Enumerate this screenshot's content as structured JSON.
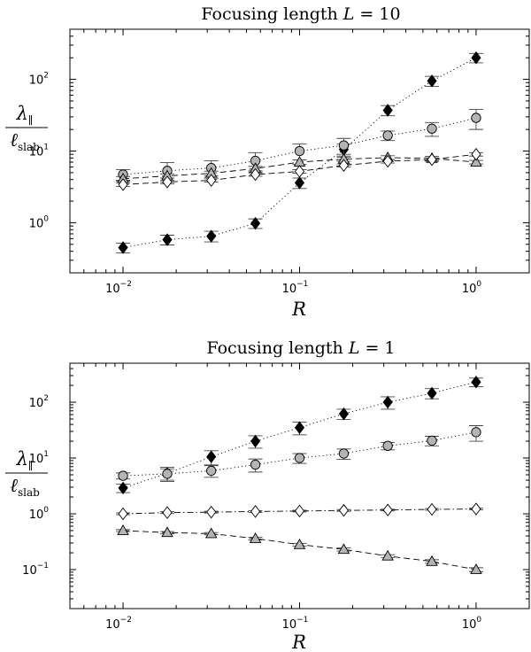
{
  "chart_data": [
    {
      "type": "scatter",
      "title_prefix": "Focusing length ",
      "title_var": "L",
      "title_value": " = 10",
      "xlabel": "R",
      "ylabel_main": "λ",
      "ylabel_sub_main": "∥",
      "ylabel_den": "ℓ",
      "ylabel_sub_den": "slab",
      "xscale": "log",
      "yscale": "log",
      "xlim": [
        0.005,
        2.0
      ],
      "ylim": [
        0.2,
        500
      ],
      "xticks": [
        {
          "base": "10",
          "exp": "−2",
          "value": 0.01
        },
        {
          "base": "10",
          "exp": "−1",
          "value": 0.1
        },
        {
          "base": "10",
          "exp": "0",
          "value": 1
        }
      ],
      "yticks": [
        {
          "base": "10",
          "exp": "0",
          "value": 1
        },
        {
          "base": "10",
          "exp": "1",
          "value": 10
        },
        {
          "base": "10",
          "exp": "2",
          "value": 100
        }
      ],
      "x": [
        0.01,
        0.0178,
        0.0316,
        0.0562,
        0.1,
        0.178,
        0.316,
        0.562,
        1.0
      ],
      "series": [
        {
          "name": "filled-diamond",
          "marker": "diamond",
          "fill": "#000000",
          "line": "dotted",
          "values": [
            0.45,
            0.58,
            0.65,
            0.98,
            3.6,
            10.5,
            37,
            95,
            200
          ],
          "err": [
            0.07,
            0.09,
            0.11,
            0.15,
            0.6,
            2.0,
            6.0,
            15.0,
            30.0
          ]
        },
        {
          "name": "grey-circle",
          "marker": "circle",
          "fill": "#b4b4b4",
          "line": "dotted",
          "values": [
            4.7,
            5.3,
            5.8,
            7.3,
            10,
            12,
            16.5,
            20.5,
            29
          ],
          "err": [
            0.8,
            1.6,
            1.5,
            2.2,
            2.5,
            3.0,
            2.5,
            4.5,
            9.0
          ]
        },
        {
          "name": "grey-triangle",
          "marker": "triangle",
          "fill": "#b4b4b4",
          "line": "dashed",
          "values": [
            4.1,
            4.5,
            4.9,
            5.7,
            7.0,
            7.7,
            8.1,
            7.9,
            7.0
          ],
          "err": [
            0.3,
            0.3,
            0.35,
            0.4,
            0.5,
            0.5,
            0.5,
            0.5,
            0.4
          ]
        },
        {
          "name": "open-diamond",
          "marker": "diamond",
          "fill": "#ffffff",
          "line": "dashed",
          "values": [
            3.4,
            3.7,
            3.9,
            4.7,
            5.2,
            6.3,
            7.2,
            7.6,
            9.0
          ],
          "err": [
            0.2,
            0.2,
            0.2,
            0.25,
            0.3,
            0.3,
            0.4,
            0.4,
            0.5
          ]
        }
      ]
    },
    {
      "type": "scatter",
      "title_prefix": "Focusing length ",
      "title_var": "L",
      "title_value": " = 1",
      "xlabel": "R",
      "ylabel_main": "λ",
      "ylabel_sub_main": "∥",
      "ylabel_den": "ℓ",
      "ylabel_sub_den": "slab",
      "xscale": "log",
      "yscale": "log",
      "xlim": [
        0.005,
        2.0
      ],
      "ylim": [
        0.02,
        500
      ],
      "xticks": [
        {
          "base": "10",
          "exp": "−2",
          "value": 0.01
        },
        {
          "base": "10",
          "exp": "−1",
          "value": 0.1
        },
        {
          "base": "10",
          "exp": "0",
          "value": 1
        }
      ],
      "yticks": [
        {
          "base": "10",
          "exp": "−1",
          "value": 0.1
        },
        {
          "base": "10",
          "exp": "0",
          "value": 1
        },
        {
          "base": "10",
          "exp": "1",
          "value": 10
        },
        {
          "base": "10",
          "exp": "2",
          "value": 100
        }
      ],
      "x": [
        0.01,
        0.0178,
        0.0316,
        0.0562,
        0.1,
        0.178,
        0.316,
        0.562,
        1.0
      ],
      "series": [
        {
          "name": "filled-diamond",
          "marker": "diamond",
          "fill": "#000000",
          "line": "dotted",
          "values": [
            2.9,
            5.3,
            10.5,
            20,
            35,
            62,
            100,
            145,
            230
          ],
          "err": [
            0.5,
            1.5,
            3.0,
            5.0,
            9.0,
            13.0,
            25.0,
            30.0,
            40.0
          ]
        },
        {
          "name": "grey-circle",
          "marker": "circle",
          "fill": "#b4b4b4",
          "line": "dotted",
          "values": [
            4.8,
            5.2,
            5.9,
            7.6,
            10,
            12,
            16.5,
            20.5,
            29
          ],
          "err": [
            0.6,
            1.2,
            1.4,
            2.0,
            2.0,
            2.5,
            2.5,
            4.0,
            9.0
          ]
        },
        {
          "name": "open-diamond",
          "marker": "diamond",
          "fill": "#ffffff",
          "line": "dashdot",
          "values": [
            1.0,
            1.05,
            1.07,
            1.1,
            1.12,
            1.15,
            1.17,
            1.2,
            1.22
          ],
          "err": [
            0.04,
            0.04,
            0.04,
            0.04,
            0.04,
            0.04,
            0.04,
            0.04,
            0.04
          ]
        },
        {
          "name": "grey-triangle",
          "marker": "triangle",
          "fill": "#b4b4b4",
          "line": "dashed",
          "values": [
            0.5,
            0.46,
            0.44,
            0.36,
            0.28,
            0.23,
            0.175,
            0.14,
            0.1
          ],
          "err": [
            0.02,
            0.02,
            0.02,
            0.02,
            0.015,
            0.015,
            0.01,
            0.01,
            0.008
          ]
        }
      ]
    }
  ]
}
